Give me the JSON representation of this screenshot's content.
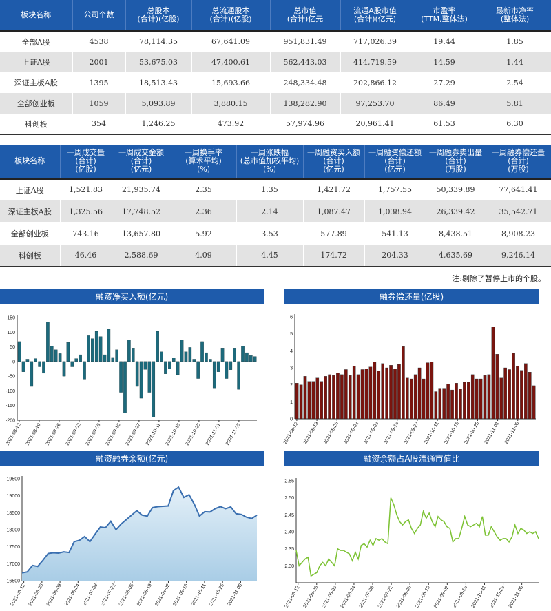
{
  "table1": {
    "headers": [
      [
        "板块名称"
      ],
      [
        "公司个数"
      ],
      [
        "总股本",
        "(合计)(亿股)"
      ],
      [
        "总流通股本",
        "(合计)(亿股)"
      ],
      [
        "总市值",
        "(合计)亿元"
      ],
      [
        "流通A股市值",
        "(合计)(亿元)"
      ],
      [
        "市盈率",
        "(TTM,整体法)"
      ],
      [
        "最新市净率",
        "(整体法)"
      ]
    ],
    "rows": [
      [
        "全部A股",
        "4538",
        "78,114.35",
        "67,641.09",
        "951,831.49",
        "717,026.39",
        "19.44",
        "1.85"
      ],
      [
        "上证A股",
        "2001",
        "53,675.03",
        "47,400.61",
        "562,443.03",
        "414,719.59",
        "14.59",
        "1.44"
      ],
      [
        "深证主板A股",
        "1395",
        "18,513.43",
        "15,693.66",
        "248,334.48",
        "202,866.12",
        "27.29",
        "2.54"
      ],
      [
        "全部创业板",
        "1059",
        "5,093.89",
        "3,880.15",
        "138,282.90",
        "97,253.70",
        "86.49",
        "5.81"
      ],
      [
        "科创板",
        "354",
        "1,246.25",
        "473.92",
        "57,974.96",
        "20,961.41",
        "61.53",
        "6.30"
      ]
    ]
  },
  "table2": {
    "headers": [
      [
        "板块名称"
      ],
      [
        "一周成交量",
        "(合计)",
        "(亿股)"
      ],
      [
        "一周成交金额",
        "(合计)",
        "(亿元)"
      ],
      [
        "一周换手率",
        "(算术平均)",
        "(%)"
      ],
      [
        "一周涨跌幅",
        "(总市值加权平均)",
        "(%)"
      ],
      [
        "一周融资买入额",
        "(合计)",
        "(亿元)"
      ],
      [
        "一周融资偿还额",
        "(合计)",
        "(亿元)"
      ],
      [
        "一周融券卖出量",
        "(合计)",
        "(万股)"
      ],
      [
        "一周融券偿还量",
        "(合计)",
        "(万股)"
      ]
    ],
    "rows": [
      [
        "上证A股",
        "1,521.83",
        "21,935.74",
        "2.35",
        "1.35",
        "1,421.72",
        "1,757.55",
        "50,339.89",
        "77,641.41"
      ],
      [
        "深证主板A股",
        "1,325.56",
        "17,748.52",
        "2.36",
        "2.14",
        "1,087.47",
        "1,038.94",
        "26,339.42",
        "35,542.71"
      ],
      [
        "全部创业板",
        "743.16",
        "13,657.80",
        "5.92",
        "3.53",
        "577.89",
        "541.13",
        "8,438.51",
        "8,908.23"
      ],
      [
        "科创板",
        "46.46",
        "2,588.69",
        "4.09",
        "4.45",
        "174.72",
        "204.33",
        "4,635.69",
        "9,246.14"
      ]
    ],
    "note": "注:剔除了暂停上市的个股。"
  },
  "colors": {
    "header": "#1e5bab",
    "bar1": "#1d6a7c",
    "bar2": "#7a140e",
    "line3": "#3a6fb0",
    "fill3": "#a9cde6",
    "line4": "#7cc233"
  },
  "chart_data": [
    {
      "type": "bar",
      "title": "融资净买入额(亿元)",
      "ylim": [
        -200,
        150
      ],
      "yticks": [
        150,
        100,
        50,
        0,
        -50,
        -100,
        -150,
        -200
      ],
      "xticks": [
        "2021-08-12",
        "2021-08-19",
        "2021-08-26",
        "2021-09-02",
        "2021-09-09",
        "2021-09-16",
        "2021-09-27",
        "2021-10-11",
        "2021-10-18",
        "2021-10-25",
        "2021-11-01",
        "2021-11-08"
      ],
      "values": [
        68,
        -35,
        8,
        -85,
        10,
        -18,
        -40,
        135,
        52,
        40,
        27,
        -50,
        65,
        -18,
        10,
        23,
        -60,
        88,
        78,
        103,
        85,
        23,
        110,
        14,
        40,
        -105,
        -175,
        73,
        46,
        -85,
        -125,
        -27,
        -105,
        -190,
        103,
        33,
        -42,
        -25,
        13,
        -45,
        73,
        33,
        48,
        8,
        -58,
        68,
        30,
        8,
        -90,
        -35,
        46,
        -58,
        -28,
        46,
        -95,
        52,
        30,
        20,
        17
      ]
    },
    {
      "type": "bar",
      "title": "融券偿还量(亿股)",
      "ylim": [
        0,
        6
      ],
      "yticks": [
        6,
        5,
        4,
        3,
        2,
        1,
        0
      ],
      "xticks": [
        "2021-08-12",
        "2021-08-19",
        "2021-08-26",
        "2021-09-02",
        "2021-09-09",
        "2021-09-16",
        "2021-09-27",
        "2021-10-11",
        "2021-10-18",
        "2021-10-25",
        "2021-11-01",
        "2021-11-08"
      ],
      "values": [
        2.1,
        2.0,
        2.5,
        2.2,
        2.2,
        2.4,
        2.2,
        2.5,
        2.6,
        2.55,
        2.7,
        2.6,
        2.9,
        2.55,
        3.1,
        2.6,
        2.9,
        2.95,
        3.05,
        3.35,
        2.8,
        3.25,
        3.0,
        3.15,
        2.95,
        3.2,
        4.25,
        2.4,
        2.35,
        2.6,
        3.0,
        2.35,
        3.3,
        3.35,
        1.6,
        1.8,
        1.8,
        2.05,
        1.7,
        2.1,
        1.75,
        2.15,
        2.15,
        2.6,
        2.35,
        2.35,
        2.55,
        2.6,
        5.4,
        3.8,
        2.4,
        3.0,
        2.9,
        3.85,
        3.1,
        2.85,
        3.25,
        2.75,
        1.95
      ]
    },
    {
      "type": "area",
      "title": "融资融券余额(亿元)",
      "ylim": [
        16500,
        19500
      ],
      "yticks": [
        19500,
        19000,
        18500,
        18000,
        17500,
        17000,
        16500
      ],
      "xticks": [
        "2021-05-12",
        "2021-05-26",
        "2021-06-09",
        "2021-06-24",
        "2021-07-08",
        "2021-07-22",
        "2021-08-05",
        "2021-08-19",
        "2021-09-02",
        "2021-09-16",
        "2021-10-11",
        "2021-10-25",
        "2021-11-08"
      ],
      "values": [
        16730,
        16760,
        16950,
        16920,
        17100,
        17300,
        17320,
        17310,
        17350,
        17330,
        17650,
        17690,
        17800,
        17650,
        17870,
        18080,
        18060,
        18250,
        18000,
        18170,
        18300,
        18430,
        18560,
        18430,
        18400,
        18650,
        18680,
        18690,
        18700,
        19150,
        19250,
        18950,
        19030,
        18750,
        18400,
        18530,
        18520,
        18620,
        18680,
        18620,
        18670,
        18470,
        18450,
        18370,
        18330,
        18430
      ]
    },
    {
      "type": "line",
      "title": "融资余额占A股流通市值比",
      "ylim": [
        2.25,
        2.55
      ],
      "yticks": [
        2.55,
        2.5,
        2.45,
        2.4,
        2.35,
        2.3
      ],
      "xticks": [
        "2021-05-12",
        "2021-05-26",
        "2021-06-09",
        "2021-06-24",
        "2021-07-08",
        "2021-07-22",
        "2021-08-05",
        "2021-08-19",
        "2021-09-02",
        "2021-09-16",
        "2021-10-11",
        "2021-10-25",
        "2021-11-08"
      ],
      "values": [
        2.345,
        2.3,
        2.31,
        2.32,
        2.325,
        2.27,
        2.275,
        2.28,
        2.3,
        2.31,
        2.3,
        2.32,
        2.31,
        2.3,
        2.35,
        2.345,
        2.345,
        2.34,
        2.335,
        2.315,
        2.34,
        2.32,
        2.36,
        2.365,
        2.355,
        2.375,
        2.36,
        2.38,
        2.375,
        2.38,
        2.37,
        2.365,
        2.5,
        2.48,
        2.45,
        2.43,
        2.42,
        2.43,
        2.435,
        2.41,
        2.395,
        2.41,
        2.42,
        2.46,
        2.44,
        2.455,
        2.43,
        2.415,
        2.445,
        2.435,
        2.43,
        2.415,
        2.41,
        2.37,
        2.38,
        2.38,
        2.41,
        2.445,
        2.42,
        2.415,
        2.42,
        2.425,
        2.415,
        2.445,
        2.39,
        2.39,
        2.415,
        2.4,
        2.385,
        2.375,
        2.38,
        2.38,
        2.37,
        2.385,
        2.42,
        2.395,
        2.41,
        2.405,
        2.395,
        2.4,
        2.395,
        2.4,
        2.38
      ]
    }
  ]
}
